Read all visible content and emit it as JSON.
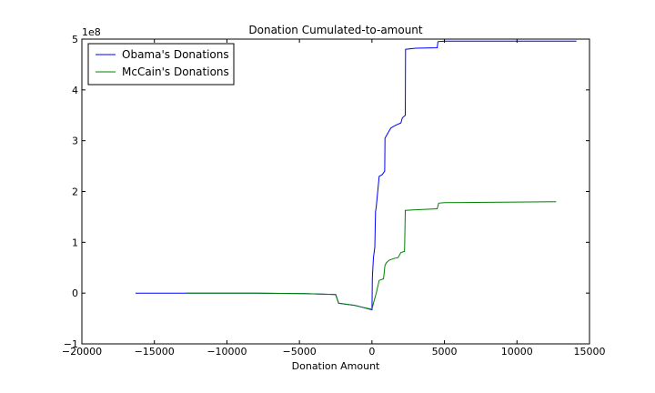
{
  "chart_data": {
    "type": "line",
    "title": "Donation Cumulated-to-amount",
    "xlabel": "Donation Amount",
    "ylabel": "",
    "y_scale_label": "1e8",
    "xlim": [
      -20000,
      15000
    ],
    "ylim": [
      -1,
      5
    ],
    "x_ticks": [
      -20000,
      -15000,
      -10000,
      -5000,
      0,
      5000,
      10000,
      15000
    ],
    "x_tick_labels": [
      "−20000",
      "−15000",
      "−10000",
      "−5000",
      "0",
      "5000",
      "10000",
      "15000"
    ],
    "y_ticks": [
      -1,
      0,
      1,
      2,
      3,
      4,
      5
    ],
    "y_tick_labels": [
      "−1",
      "0",
      "1",
      "2",
      "3",
      "4",
      "5"
    ],
    "grid": false,
    "legend_position": "top-left",
    "series": [
      {
        "name": "Obama's Donations",
        "color": "#0000ff",
        "points": [
          [
            -16300,
            0.0
          ],
          [
            -12800,
            0.0
          ],
          [
            -8000,
            0.0
          ],
          [
            -4600,
            -0.01
          ],
          [
            -2500,
            -0.03
          ],
          [
            -2300,
            -0.2
          ],
          [
            -1200,
            -0.24
          ],
          [
            -800,
            -0.27
          ],
          [
            0,
            -0.33
          ],
          [
            30,
            0.3
          ],
          [
            100,
            0.7
          ],
          [
            200,
            0.9
          ],
          [
            250,
            1.6
          ],
          [
            300,
            1.7
          ],
          [
            500,
            2.3
          ],
          [
            700,
            2.33
          ],
          [
            880,
            2.4
          ],
          [
            900,
            3.05
          ],
          [
            1000,
            3.1
          ],
          [
            1200,
            3.2
          ],
          [
            1300,
            3.25
          ],
          [
            1600,
            3.3
          ],
          [
            2000,
            3.35
          ],
          [
            2100,
            3.45
          ],
          [
            2300,
            3.5
          ],
          [
            2320,
            4.8
          ],
          [
            3000,
            4.82
          ],
          [
            4500,
            4.83
          ],
          [
            4550,
            4.95
          ],
          [
            5000,
            4.96
          ],
          [
            10000,
            4.96
          ],
          [
            14100,
            4.96
          ]
        ]
      },
      {
        "name": "McCain's Donations",
        "color": "#008000",
        "points": [
          [
            -12800,
            0.0
          ],
          [
            -8000,
            0.0
          ],
          [
            -4600,
            -0.01
          ],
          [
            -2500,
            -0.03
          ],
          [
            -2300,
            -0.2
          ],
          [
            -1200,
            -0.24
          ],
          [
            -800,
            -0.27
          ],
          [
            0,
            -0.32
          ],
          [
            100,
            -0.2
          ],
          [
            300,
            0.0
          ],
          [
            500,
            0.25
          ],
          [
            800,
            0.28
          ],
          [
            900,
            0.55
          ],
          [
            1000,
            0.6
          ],
          [
            1200,
            0.65
          ],
          [
            1500,
            0.68
          ],
          [
            1800,
            0.7
          ],
          [
            2000,
            0.8
          ],
          [
            2250,
            0.82
          ],
          [
            2300,
            1.63
          ],
          [
            3000,
            1.64
          ],
          [
            4500,
            1.66
          ],
          [
            4600,
            1.77
          ],
          [
            5000,
            1.78
          ],
          [
            9000,
            1.79
          ],
          [
            12700,
            1.8
          ]
        ]
      }
    ]
  }
}
